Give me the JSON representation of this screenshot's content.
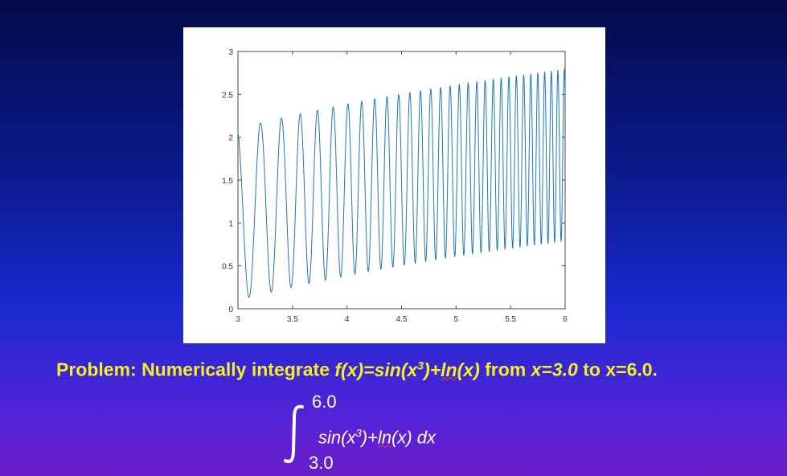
{
  "chart_data": {
    "type": "line",
    "title": "",
    "xlabel": "",
    "ylabel": "",
    "xlim": [
      3,
      6
    ],
    "ylim": [
      0,
      3
    ],
    "x_ticks": [
      "3",
      "3.5",
      "4",
      "4.5",
      "5",
      "5.5",
      "6"
    ],
    "y_ticks": [
      "0",
      "0.5",
      "1",
      "1.5",
      "2",
      "2.5",
      "3"
    ],
    "grid": false,
    "series": [
      {
        "function": "sin(x^3)+ln(x)",
        "x_start": 3.0,
        "x_end": 6.0,
        "color": "#1f77b4"
      }
    ]
  },
  "problem": {
    "prefix": "Problem: Numerically integrate ",
    "func_label": "f(x)=sin(x",
    "func_sup": "3",
    "func_mid": ")+",
    "func_ln": "ln",
    "func_end": "(x)",
    "from_text": " from ",
    "from_val": "x=3.0",
    "to_text": "  to ",
    "to_val": "x=6.0."
  },
  "integral": {
    "upper": "6.0",
    "lower": "3.0",
    "integrand_a": "sin(x",
    "integrand_sup": "3",
    "integrand_b": ")+",
    "integrand_ln": "ln",
    "integrand_c": "(x) dx"
  },
  "colors": {
    "text_yellow": "#f4ef2a",
    "text_white": "#ffffff",
    "line_blue": "#1f77b4"
  }
}
